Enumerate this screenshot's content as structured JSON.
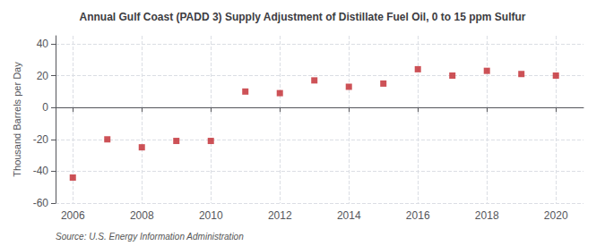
{
  "chart_data": {
    "type": "scatter",
    "title": "Annual Gulf Coast (PADD 3) Supply Adjustment of Distillate Fuel Oil, 0 to 15 ppm Sulfur",
    "ylabel": "Thousand Barrels per Day",
    "annotation": "Source: U.S. Energy Information Administration",
    "x": [
      2006,
      2007,
      2008,
      2009,
      2010,
      2011,
      2012,
      2013,
      2014,
      2015,
      2016,
      2017,
      2018,
      2019,
      2020
    ],
    "values": [
      -44,
      -20,
      -25,
      -21,
      -21,
      10,
      9,
      17,
      13,
      15,
      24,
      20,
      23,
      21,
      20
    ],
    "xlim": [
      2005.5,
      2020.8
    ],
    "xticks": [
      2006,
      2008,
      2010,
      2012,
      2014,
      2016,
      2018,
      2020
    ],
    "ylim": [
      -60,
      45
    ],
    "yticks": [
      -60,
      -40,
      -20,
      0,
      20,
      40
    ],
    "color": "#c0272d",
    "marker": "square",
    "grid": true
  }
}
